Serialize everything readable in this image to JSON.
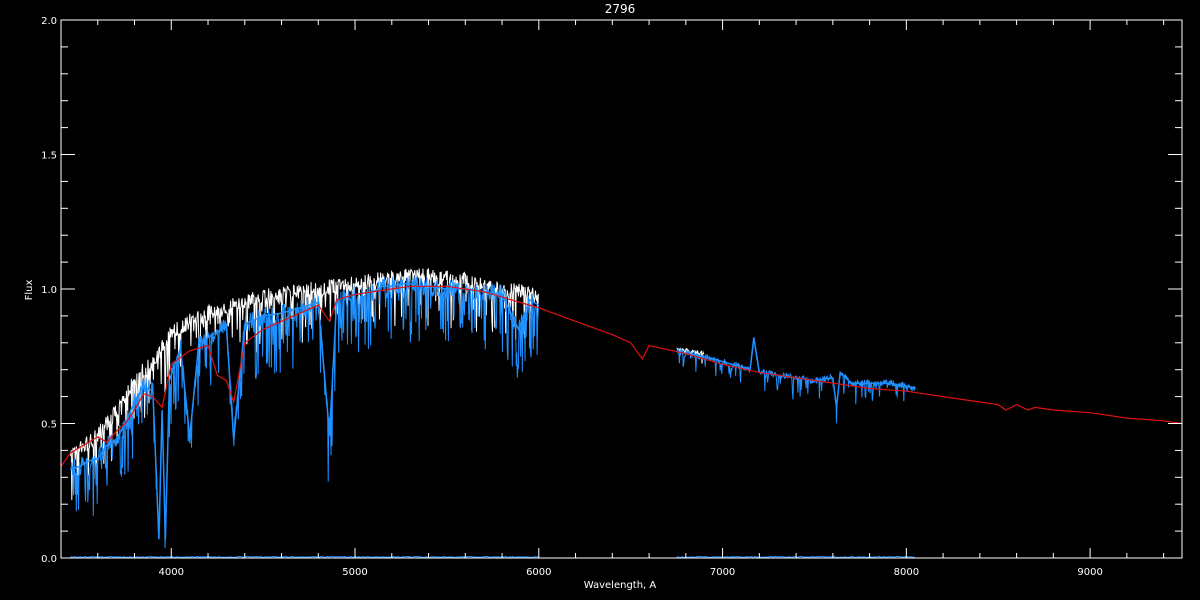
{
  "chart_data": {
    "type": "line",
    "title": "2796",
    "xlabel": "Wavelength, A",
    "ylabel": "Flux",
    "xlim": [
      3400,
      9500
    ],
    "ylim": [
      0.0,
      2.0
    ],
    "x_ticks": [
      4000,
      5000,
      6000,
      7000,
      8000,
      9000
    ],
    "x_tick_labels": [
      "4000",
      "5000",
      "6000",
      "7000",
      "8000",
      "9000"
    ],
    "y_ticks": [
      0.0,
      0.5,
      1.0,
      1.5,
      2.0
    ],
    "y_tick_labels": [
      "0.0",
      "0.5",
      "1.0",
      "1.5",
      "2.0"
    ],
    "grid": false,
    "legend": "none",
    "colors": {
      "background": "#000000",
      "axes": "#ffffff",
      "model": "#e01010",
      "observed": "#1e90ff",
      "upper_envelope": "#ffffff"
    },
    "series": [
      {
        "x": [
          3400,
          3450,
          3500,
          3550,
          3600,
          3650,
          3700,
          3750,
          3800,
          3850,
          3900,
          3950,
          4000,
          4100,
          4200,
          4250,
          4300,
          4340,
          4400,
          4500,
          4600,
          4700,
          4800,
          4861,
          4900,
          5000,
          5100,
          5200,
          5300,
          5400,
          5500,
          5600,
          5700,
          5800,
          5900,
          6000,
          6200,
          6400,
          6500,
          6563,
          6600,
          6800,
          7000,
          7200,
          7400,
          7600,
          7800,
          8000,
          8200,
          8400,
          8500,
          8542,
          8600,
          8662,
          8700,
          8800,
          9000,
          9200,
          9400,
          9500
        ],
        "y": [
          0.34,
          0.39,
          0.41,
          0.43,
          0.45,
          0.43,
          0.47,
          0.5,
          0.55,
          0.61,
          0.6,
          0.56,
          0.72,
          0.77,
          0.79,
          0.68,
          0.66,
          0.58,
          0.8,
          0.85,
          0.88,
          0.91,
          0.94,
          0.88,
          0.96,
          0.98,
          0.99,
          1.0,
          1.01,
          1.01,
          1.01,
          1.0,
          0.99,
          0.97,
          0.95,
          0.93,
          0.88,
          0.83,
          0.8,
          0.74,
          0.79,
          0.76,
          0.72,
          0.69,
          0.67,
          0.65,
          0.63,
          0.62,
          0.6,
          0.58,
          0.57,
          0.55,
          0.57,
          0.55,
          0.56,
          0.55,
          0.54,
          0.52,
          0.51,
          0.5
        ]
      },
      {
        "x": [
          3450,
          3500,
          3550,
          3600,
          3650,
          3700,
          3750,
          3800,
          3850,
          3900,
          3933,
          3950,
          3968,
          3990,
          4050,
          4101,
          4150,
          4200,
          4250,
          4300,
          4340,
          4400,
          4500,
          4600,
          4700,
          4800,
          4861,
          4900,
          4950,
          5000,
          5100,
          5150,
          5200,
          5250,
          5300,
          5350,
          5400,
          5500,
          5600,
          5700,
          5800,
          5890,
          5950,
          6000
        ],
        "y": [
          0.33,
          0.34,
          0.36,
          0.37,
          0.42,
          0.44,
          0.5,
          0.58,
          0.64,
          0.62,
          0.07,
          0.55,
          0.07,
          0.66,
          0.78,
          0.45,
          0.8,
          0.82,
          0.84,
          0.86,
          0.44,
          0.87,
          0.9,
          0.91,
          0.93,
          0.95,
          0.46,
          0.96,
          0.97,
          0.98,
          0.99,
          1.01,
          1.01,
          1.02,
          1.02,
          1.01,
          1.01,
          1.0,
          1.0,
          0.99,
          0.98,
          0.85,
          0.96,
          0.94
        ]
      },
      {
        "x": [
          6750,
          6800,
          6900,
          7000,
          7100,
          7150,
          7170,
          7200,
          7300,
          7400,
          7500,
          7600,
          7620,
          7640,
          7700,
          7800,
          7900,
          8000,
          8050
        ],
        "y": [
          0.77,
          0.76,
          0.75,
          0.73,
          0.71,
          0.7,
          0.82,
          0.69,
          0.68,
          0.67,
          0.66,
          0.67,
          0.56,
          0.69,
          0.65,
          0.65,
          0.65,
          0.64,
          0.63
        ]
      },
      {
        "x": [
          3450,
          3500,
          3550,
          3600,
          3650,
          3700,
          3750,
          3800,
          3850,
          3900,
          3950,
          4000,
          4100,
          4200,
          4300,
          4400,
          4500,
          4600,
          4700,
          4800,
          4900,
          5000,
          5100,
          5200,
          5300,
          5400,
          5500,
          5600,
          5700,
          5800,
          5900,
          6000
        ],
        "y": [
          0.38,
          0.4,
          0.43,
          0.46,
          0.5,
          0.54,
          0.6,
          0.66,
          0.7,
          0.72,
          0.78,
          0.84,
          0.88,
          0.91,
          0.93,
          0.95,
          0.97,
          0.98,
          0.99,
          1.0,
          1.01,
          1.02,
          1.03,
          1.04,
          1.05,
          1.05,
          1.04,
          1.03,
          1.01,
          1.0,
          0.99,
          0.98
        ]
      }
    ]
  }
}
